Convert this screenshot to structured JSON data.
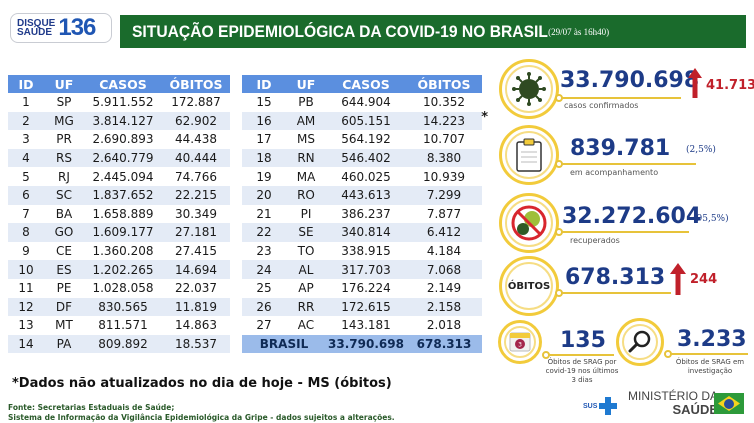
{
  "header": {
    "hotline_small": [
      "DISQUE",
      "SAÚDE"
    ],
    "hotline_number": "136",
    "title": "SITUAÇÃO EPIDEMIOLÓGICA DA COVID-19 NO BRASIL",
    "date": "(29/07 às 16h40)"
  },
  "table": {
    "columns": [
      "ID",
      "UF",
      "CASOS",
      "ÓBITOS"
    ],
    "left_rows": [
      {
        "id": "1",
        "uf": "SP",
        "casos": "5.911.552",
        "obitos": "172.887"
      },
      {
        "id": "2",
        "uf": "MG",
        "casos": "3.814.127",
        "obitos": "62.902"
      },
      {
        "id": "3",
        "uf": "PR",
        "casos": "2.690.893",
        "obitos": "44.438"
      },
      {
        "id": "4",
        "uf": "RS",
        "casos": "2.640.779",
        "obitos": "40.444"
      },
      {
        "id": "5",
        "uf": "RJ",
        "casos": "2.445.094",
        "obitos": "74.766"
      },
      {
        "id": "6",
        "uf": "SC",
        "casos": "1.837.652",
        "obitos": "22.215"
      },
      {
        "id": "7",
        "uf": "BA",
        "casos": "1.658.889",
        "obitos": "30.349"
      },
      {
        "id": "8",
        "uf": "GO",
        "casos": "1.609.177",
        "obitos": "27.181"
      },
      {
        "id": "9",
        "uf": "CE",
        "casos": "1.360.208",
        "obitos": "27.415"
      },
      {
        "id": "10",
        "uf": "ES",
        "casos": "1.202.265",
        "obitos": "14.694"
      },
      {
        "id": "11",
        "uf": "PE",
        "casos": "1.028.058",
        "obitos": "22.037"
      },
      {
        "id": "12",
        "uf": "DF",
        "casos": "830.565",
        "obitos": "11.819"
      },
      {
        "id": "13",
        "uf": "MT",
        "casos": "811.571",
        "obitos": "14.863"
      },
      {
        "id": "14",
        "uf": "PA",
        "casos": "809.892",
        "obitos": "18.537"
      }
    ],
    "right_rows": [
      {
        "id": "15",
        "uf": "PB",
        "casos": "644.904",
        "obitos": "10.352"
      },
      {
        "id": "16",
        "uf": "AM",
        "casos": "605.151",
        "obitos": "14.223",
        "flag": "*"
      },
      {
        "id": "17",
        "uf": "MS",
        "casos": "564.192",
        "obitos": "10.707"
      },
      {
        "id": "18",
        "uf": "RN",
        "casos": "546.402",
        "obitos": "8.380"
      },
      {
        "id": "19",
        "uf": "MA",
        "casos": "460.025",
        "obitos": "10.939"
      },
      {
        "id": "20",
        "uf": "RO",
        "casos": "443.613",
        "obitos": "7.299"
      },
      {
        "id": "21",
        "uf": "PI",
        "casos": "386.237",
        "obitos": "7.877"
      },
      {
        "id": "22",
        "uf": "SE",
        "casos": "340.814",
        "obitos": "6.412"
      },
      {
        "id": "23",
        "uf": "TO",
        "casos": "338.915",
        "obitos": "4.184"
      },
      {
        "id": "24",
        "uf": "AL",
        "casos": "317.703",
        "obitos": "7.068"
      },
      {
        "id": "25",
        "uf": "AP",
        "casos": "176.224",
        "obitos": "2.149"
      },
      {
        "id": "26",
        "uf": "RR",
        "casos": "172.615",
        "obitos": "2.158"
      },
      {
        "id": "27",
        "uf": "AC",
        "casos": "143.181",
        "obitos": "2.018"
      }
    ],
    "total": {
      "label": "BRASIL",
      "casos": "33.790.698",
      "obitos": "678.313"
    }
  },
  "stats": {
    "confirmed": {
      "value": "33.790.698",
      "label": "casos confirmados",
      "delta": "41.713",
      "icon": "virus-icon"
    },
    "monitoring": {
      "value": "839.781",
      "label": "em acompanhamento",
      "pct": "(2,5%)",
      "icon": "clipboard-icon"
    },
    "recovered": {
      "value": "32.272.604",
      "label": "recuperados",
      "pct": "(95,5%)",
      "icon": "no-virus-icon"
    },
    "deaths": {
      "badge": "ÓBITOS",
      "value": "678.313",
      "delta": "244"
    },
    "srag_recent": {
      "value": "135",
      "label": [
        "Óbitos de SRAG por",
        "covid-19 nos últimos",
        "3 dias"
      ],
      "icon": "calendar-icon",
      "calendar_number": "3"
    },
    "srag_investigation": {
      "value": "3.233",
      "label": [
        "Óbitos de SRAG em",
        "investigação"
      ],
      "icon": "magnifier-icon"
    }
  },
  "footer": {
    "note": "*Dados não atualizados no dia de hoje - MS (óbitos)",
    "source_line1": "Fonte: Secretarias Estaduais de Saúde;",
    "source_line2": "Sistema de Informação da Vigilância Epidemiológica da Gripe - dados sujeitos a alterações.",
    "sus": "SUS",
    "ministry_line1": "MINISTÉRIO DA",
    "ministry_line2": "SAÚDE"
  },
  "colors": {
    "title_green": "#1a6b2c",
    "header_blue": "#5b8fdf",
    "row_alt": "#e4ebf6",
    "total_row": "#9bbbea",
    "number_blue": "#1d3b87",
    "delta_red": "#c0202a",
    "ring_yellow": "#f2cb3b"
  }
}
